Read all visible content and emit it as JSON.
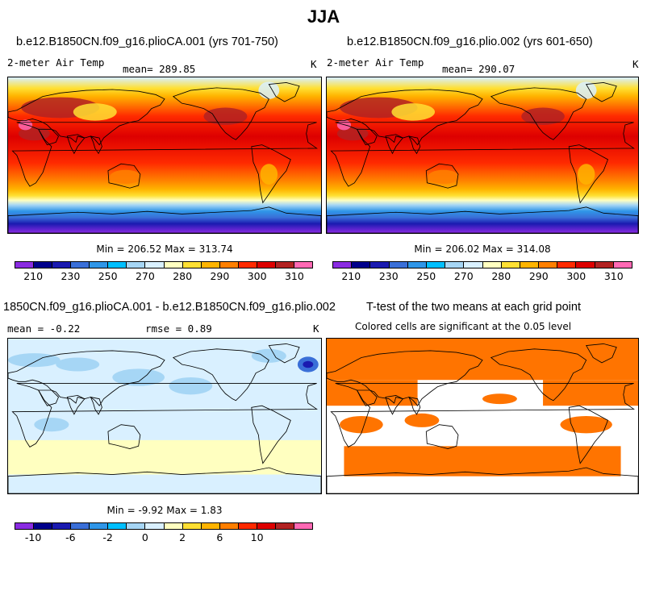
{
  "title": "JJA",
  "panels": {
    "p1": {
      "title": "b.e12.B1850CN.f09_g16.plioCA.001 (yrs 701-750)",
      "variable": "2-meter Air Temp",
      "mean": "mean= 289.85",
      "units": "K",
      "minmax": "Min = 206.52 Max = 313.74"
    },
    "p2": {
      "title": "b.e12.B1850CN.f09_g16.plio.002 (yrs 601-650)",
      "variable": "2-meter Air Temp",
      "mean": "mean= 290.07",
      "units": "K",
      "minmax": "Min = 206.02 Max = 314.08"
    },
    "p3": {
      "title": "1850CN.f09_g16.plioCA.001 - b.e12.B1850CN.f09_g16.plio.002",
      "mean": "mean =   -0.22",
      "rmse": "rmse =    0.89",
      "units": "K",
      "minmax": "Min =  -9.92 Max =   1.83"
    },
    "p4": {
      "title": "T-test of the two means at each grid point",
      "subtitle": "Colored cells are significant at the 0.05 level"
    }
  },
  "colorbar_temp": {
    "colors": [
      "#8a2be2",
      "#00008b",
      "#1a1ab0",
      "#3a6fd8",
      "#2f96e8",
      "#00bfff",
      "#a6d6f5",
      "#d9f0ff",
      "#ffffc0",
      "#ffe033",
      "#ffb400",
      "#ff7f00",
      "#ff2a00",
      "#dd0000",
      "#b22222",
      "#ff69b4"
    ],
    "labels": [
      "210",
      "230",
      "250",
      "270",
      "280",
      "290",
      "300",
      "310"
    ]
  },
  "colorbar_diff": {
    "colors": [
      "#8a2be2",
      "#00008b",
      "#1a1ab0",
      "#3a6fd8",
      "#2f96e8",
      "#00bfff",
      "#a6d6f5",
      "#d9f0ff",
      "#ffffc0",
      "#ffe033",
      "#ffb400",
      "#ff7f00",
      "#ff2a00",
      "#dd0000",
      "#b22222",
      "#ff69b4"
    ],
    "labels": [
      "-10",
      "-6",
      "-2",
      "0",
      "2",
      "6",
      "10"
    ]
  },
  "colors": {
    "significant": "#ff7400"
  }
}
